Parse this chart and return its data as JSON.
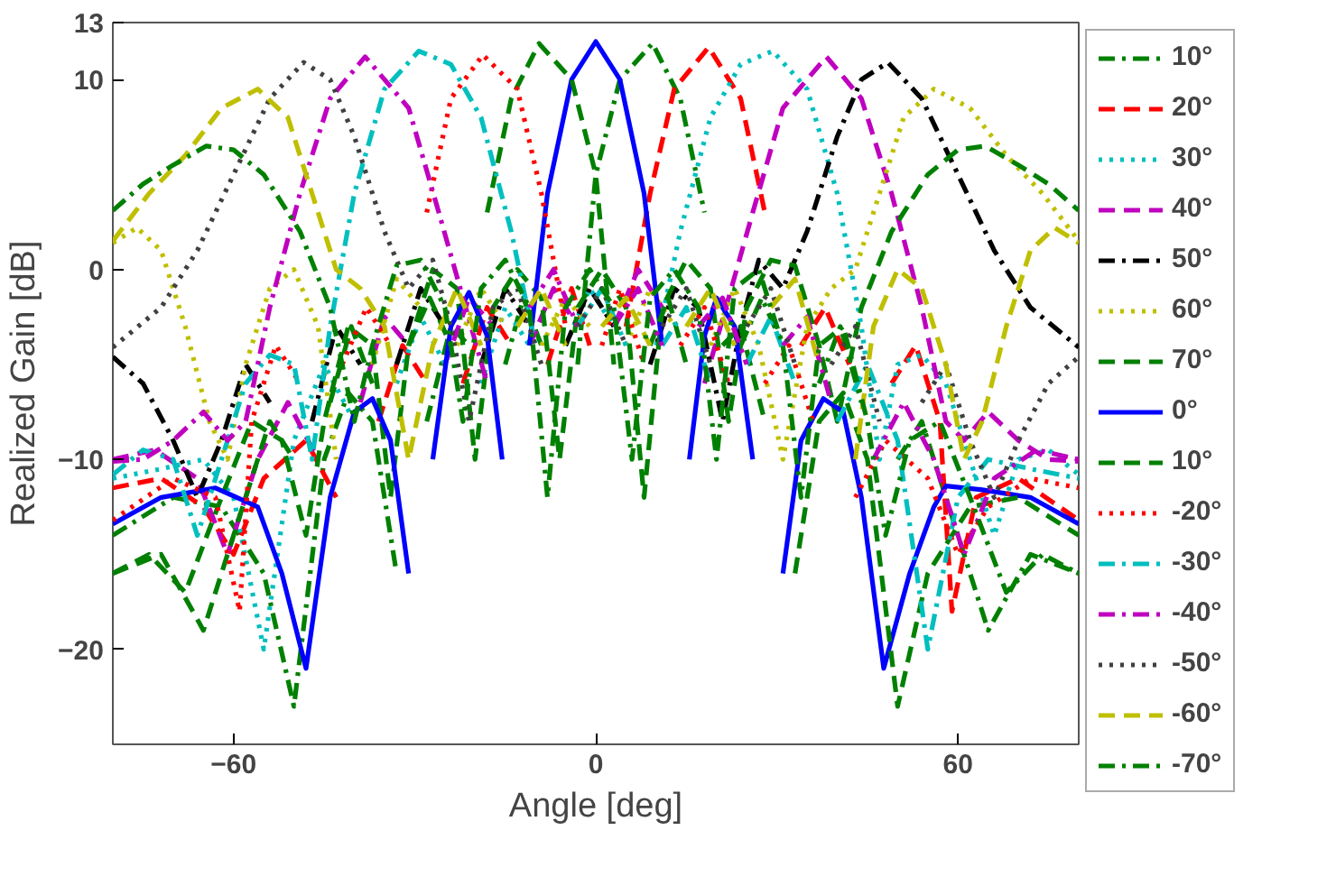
{
  "chart_data": {
    "type": "line",
    "xlabel": "Angle [deg]",
    "ylabel": "Realized Gain [dB]",
    "xlim": [
      -80,
      80
    ],
    "ylim": [
      -25,
      13
    ],
    "xticks": [
      -60,
      0,
      60
    ],
    "yticks": [
      -20,
      -10,
      0,
      10,
      13
    ],
    "grid": false,
    "legend": "right",
    "marker": "none",
    "series": [
      {
        "name": "10°",
        "color": "#008000",
        "line_style": "dashdot",
        "x": [
          -80,
          -70,
          -62,
          -55,
          -50,
          -45,
          -41,
          -37,
          -33,
          -31,
          -28,
          -24,
          -21,
          -18,
          -15,
          -12,
          -9,
          -5.5,
          -3,
          0,
          4,
          9.4,
          14,
          18,
          21.5,
          24,
          27.5,
          31,
          34,
          37,
          40.5,
          44,
          47,
          50,
          54,
          59,
          65,
          72,
          80
        ],
        "values": [
          -14,
          -12,
          -12.5,
          -16,
          -23,
          -10,
          -6.5,
          -8,
          -16,
          null,
          -8,
          -3,
          -4,
          null,
          -5,
          -1.5,
          -4,
          null,
          -5,
          5,
          10,
          11.9,
          9,
          3,
          null,
          -4,
          -1.5,
          -4,
          null,
          -6,
          -3,
          -7,
          null,
          -10,
          -8,
          -13,
          -19,
          -15,
          -16
        ]
      },
      {
        "name": "20°",
        "color": "#ff0000",
        "line_style": "dashed",
        "x": [
          -80,
          -72,
          -65,
          -60,
          -55,
          -48,
          -43,
          -39,
          -36,
          -32,
          -28,
          -25,
          -22,
          -18,
          -14,
          -11,
          -8,
          -4,
          -1,
          2,
          5,
          9,
          13,
          18.7,
          24,
          28,
          31.5,
          34,
          38,
          42,
          45.5,
          49,
          53,
          57,
          59,
          63,
          70,
          80
        ],
        "values": [
          -11.5,
          -11,
          -12.5,
          -15,
          -11,
          -9,
          -12,
          null,
          -8,
          -4,
          -6,
          null,
          -6,
          -2,
          -4,
          null,
          -5,
          -1,
          -4,
          null,
          -3,
          4,
          9.5,
          11.7,
          9,
          3,
          null,
          -4,
          -2,
          -5,
          null,
          -6,
          -4,
          -8,
          -18,
          -12,
          -11,
          -13.2
        ]
      },
      {
        "name": "30°",
        "color": "#00bfbf",
        "line_style": "dotted",
        "x": [
          -80,
          -72,
          -65,
          -60,
          -55,
          -50,
          -45,
          -40,
          -36,
          -33,
          -29,
          -25,
          -22,
          -19,
          -15,
          -11,
          -8,
          -5,
          -1,
          3,
          6,
          10,
          14,
          19,
          24,
          29.3,
          35,
          40,
          44,
          47,
          50,
          54,
          58,
          62,
          66,
          70,
          75,
          80
        ],
        "values": [
          -11,
          -10.5,
          -10,
          -12,
          -20,
          -9,
          -5,
          -8,
          null,
          -6,
          -2.5,
          -5,
          null,
          -6,
          -2,
          -4,
          null,
          -4,
          -1,
          -3,
          null,
          -4,
          2,
          8,
          10.8,
          11.5,
          9.5,
          4,
          -3,
          -10,
          -5,
          -4.5,
          -6,
          -10,
          -14,
          -10,
          -9.5,
          -10.8
        ]
      },
      {
        "name": "40°",
        "color": "#bf00bf",
        "line_style": "dashed",
        "x": [
          -80,
          -73,
          -66,
          -61,
          -56,
          -51,
          -46,
          -42,
          -39,
          -35,
          -31,
          -28,
          -25,
          -21,
          -17,
          -14,
          -11,
          -7,
          -3,
          0,
          3,
          7,
          11,
          14,
          18,
          22,
          26,
          31,
          38.2,
          44,
          49,
          54,
          58,
          61,
          65,
          70,
          75,
          80
        ],
        "values": [
          -10,
          -9.5,
          -11,
          -15,
          -10,
          -7,
          -10,
          null,
          -7,
          -2.5,
          -4,
          null,
          -5,
          -1.5,
          -3,
          null,
          -4,
          -1,
          -3,
          null,
          -3,
          0,
          -2,
          null,
          -6,
          -1.5,
          3,
          8.5,
          11.2,
          9,
          4,
          -2,
          -8,
          -9,
          -7.5,
          -9,
          -10,
          -10.1
        ]
      },
      {
        "name": "50°",
        "color": "#000000",
        "line_style": "dashdot",
        "x": [
          -80,
          -75,
          -70,
          -66,
          -62,
          -58,
          -54,
          -50,
          -47,
          -43,
          -39,
          -36,
          -33,
          -29,
          -25,
          -22,
          -19,
          -15,
          -11,
          -8,
          -5,
          -1,
          3,
          6,
          9,
          13,
          17,
          21,
          24,
          27,
          31,
          35,
          40,
          44,
          48.4,
          54,
          60,
          66,
          72,
          80
        ],
        "values": [
          -4.6,
          -6,
          -9,
          -12,
          -9,
          -5,
          -7,
          null,
          -8,
          -3,
          -5,
          null,
          -5,
          -1,
          -3,
          null,
          -5,
          -1,
          -3,
          null,
          -4,
          -1,
          -3,
          null,
          -5,
          -1,
          -2,
          -8,
          -3,
          0.5,
          -1,
          2,
          7,
          10,
          10.9,
          9,
          5,
          1,
          -2,
          -4.1
        ]
      },
      {
        "name": "60°",
        "color": "#bfbf00",
        "line_style": "dotted",
        "x": [
          -80,
          -76,
          -72,
          -68,
          -64,
          -61,
          -58,
          -54,
          -50,
          -46,
          -43,
          -40,
          -37,
          -33,
          -29,
          -26,
          -23,
          -19,
          -15,
          -12,
          -9,
          -5,
          -1,
          2,
          5,
          9,
          13,
          16,
          19,
          23,
          27,
          31,
          35,
          39,
          43,
          47,
          51,
          56,
          62,
          68,
          74,
          80
        ],
        "values": [
          1.4,
          2.2,
          1,
          -3,
          -8,
          -10,
          -5,
          -1,
          0,
          -3,
          -10,
          null,
          -5,
          -0.5,
          -2,
          null,
          -4,
          -1,
          -3,
          null,
          -4,
          -1.5,
          -3,
          null,
          -4,
          -1,
          -3,
          null,
          -4,
          -1,
          -4,
          -10,
          -3,
          -1,
          0,
          4,
          8,
          9.5,
          8.5,
          6,
          4,
          1.5
        ]
      },
      {
        "name": "70°",
        "color": "#008000",
        "line_style": "dashed",
        "x": [
          -80,
          -74,
          -68,
          -62,
          -57,
          -52,
          -48,
          -45,
          -41,
          -37,
          -34,
          -31,
          -27,
          -23,
          -20,
          -17,
          -13,
          -9,
          -6,
          -3,
          1,
          5,
          8,
          11,
          15,
          19,
          22,
          25,
          29,
          33,
          37,
          40,
          44,
          49,
          55,
          60,
          64.5,
          70,
          75,
          80
        ],
        "values": [
          -16,
          -15,
          -17,
          -12,
          -8,
          -9,
          -14,
          -8,
          -3,
          -4,
          -12,
          -4,
          0,
          -1,
          -10,
          -2,
          0,
          -1.5,
          -10,
          -2,
          0,
          -2,
          -12,
          -2,
          0.5,
          -1,
          -8,
          -2,
          0.5,
          0.2,
          -4,
          -8,
          -2,
          2,
          5,
          6.3,
          6.5,
          5.5,
          4.5,
          3.1
        ]
      },
      {
        "name": "0°",
        "color": "#0000ff",
        "line_style": "solid",
        "x": [
          -80,
          -72,
          -63,
          -56,
          -52,
          -48,
          -44,
          -40,
          -37,
          -34,
          -31,
          -29.5,
          -27,
          -24,
          -21,
          -18,
          -15.5,
          -13.5,
          -11,
          -8,
          -4,
          0,
          4,
          8,
          11,
          13.5,
          15.5,
          18,
          20,
          23,
          26,
          28.7,
          31,
          34,
          37.7,
          41,
          44,
          47.7,
          52,
          56,
          58,
          64,
          72,
          80
        ],
        "values": [
          -13.4,
          -12,
          -11.5,
          -12.5,
          -16,
          -21,
          -12,
          -7.5,
          -6.8,
          -9,
          -16,
          null,
          -10,
          -3,
          -1.2,
          -3.5,
          -10,
          null,
          -4,
          4,
          10,
          12,
          10,
          4,
          -4,
          null,
          -10,
          -3.5,
          -1.5,
          -3,
          -10,
          null,
          -16,
          -9,
          -6.8,
          -7.5,
          -12,
          -21,
          -16,
          -12.5,
          -11.4,
          -11.6,
          -12,
          -13.4
        ]
      },
      {
        "name": "10°",
        "color": "#008000",
        "line_style": "dashed",
        "x": [
          -80,
          -72,
          -65,
          -59,
          -54,
          -50,
          -47,
          -44,
          -40.5,
          -37,
          -34,
          -31,
          -27.5,
          -24,
          -21.5,
          -18,
          -14,
          -9.4,
          -4,
          0,
          3,
          5.5,
          9,
          12,
          15,
          18,
          21,
          24,
          28,
          31,
          33,
          37,
          41,
          45,
          50,
          55,
          62,
          70,
          80
        ],
        "values": [
          -16,
          -15,
          -19,
          -13,
          -8,
          -10,
          null,
          -7,
          -3,
          -6,
          null,
          -4,
          -1.5,
          -4,
          null,
          3,
          9,
          11.9,
          10,
          5,
          -5,
          null,
          -4,
          -1.5,
          -5,
          null,
          -4,
          -3,
          -8,
          null,
          -16,
          -8,
          -6.5,
          -10,
          -23,
          -16,
          -12.5,
          -12,
          -14
        ]
      },
      {
        "name": "-20°",
        "color": "#ff0000",
        "line_style": "dotted",
        "x": [
          -80,
          -70,
          -63,
          -59,
          -57,
          -53,
          -49,
          -45.5,
          -42,
          -38,
          -34,
          -31.5,
          -28,
          -24,
          -18.7,
          -13,
          -9,
          -5,
          -2,
          1,
          4,
          8,
          11,
          14,
          18,
          22,
          25,
          28,
          32,
          36,
          39,
          43,
          48,
          55,
          60,
          65,
          72,
          80
        ],
        "values": [
          -13.2,
          -11,
          -12,
          -18,
          -8,
          -4,
          -6,
          null,
          -5,
          -2,
          -4,
          null,
          3,
          9,
          11.3,
          9.5,
          4,
          -3,
          null,
          -4,
          -1,
          -5,
          null,
          -4,
          -2,
          -6,
          null,
          -6,
          -4,
          -8,
          null,
          -12,
          -9,
          -11,
          -15,
          -12.5,
          -11,
          -11.5
        ]
      },
      {
        "name": "-30°",
        "color": "#00bfbf",
        "line_style": "dashdot",
        "x": [
          -80,
          -75,
          -70,
          -66,
          -62,
          -58,
          -54,
          -50,
          -47,
          -44,
          -40,
          -35,
          -29.3,
          -24,
          -19,
          -14,
          -10,
          -6,
          -3,
          1,
          5,
          8,
          11,
          15,
          19,
          22,
          25,
          29,
          33,
          36,
          40,
          45,
          50,
          55,
          60,
          65,
          72,
          80
        ],
        "values": [
          -10.8,
          -9.5,
          -10,
          -14,
          -10,
          -6,
          -4.5,
          -5,
          -10,
          -3,
          4,
          9.5,
          11.5,
          10.8,
          8,
          2,
          -4,
          null,
          -3,
          -1,
          -4,
          null,
          -4,
          -2,
          -6,
          null,
          -5,
          -2.5,
          -6,
          null,
          -8,
          -5,
          -9,
          -20,
          -12,
          -10,
          -10.5,
          -11
        ]
      },
      {
        "name": "-40°",
        "color": "#bf00bf",
        "line_style": "dashdot",
        "x": [
          -80,
          -75,
          -70,
          -65,
          -61,
          -58,
          -54,
          -49,
          -44,
          -38.2,
          -31,
          -26,
          -22,
          -18,
          -14,
          -11,
          -7,
          -3,
          0,
          3,
          7,
          11,
          14,
          17,
          21,
          25,
          28,
          31,
          35,
          39,
          42,
          46,
          51,
          56,
          61,
          66,
          73,
          80
        ],
        "values": [
          -10.1,
          -10,
          -9,
          -7.5,
          -9,
          -8,
          -2,
          4,
          9,
          11.2,
          8.5,
          3,
          -1.5,
          -6,
          null,
          -2,
          0,
          -3,
          null,
          -3,
          -1,
          -4,
          null,
          -3,
          -1.5,
          -5,
          null,
          -4,
          -2.5,
          -7,
          null,
          -10,
          -7,
          -10,
          -15,
          -11,
          -9.5,
          -10
        ]
      },
      {
        "name": "-50°",
        "color": "#404040",
        "line_style": "dotted",
        "x": [
          -80,
          -72,
          -66,
          -60,
          -54,
          -48.4,
          -44,
          -40,
          -35,
          -31,
          -27,
          -24,
          -21,
          -17,
          -13,
          -9,
          -6,
          -3,
          1,
          5,
          8,
          11,
          15,
          19,
          22,
          25,
          29,
          33,
          36,
          39,
          43,
          47,
          50,
          54,
          58,
          62,
          66,
          70,
          75,
          80
        ],
        "values": [
          -4.1,
          -2,
          1,
          5,
          9,
          10.9,
          10,
          7,
          2,
          -1,
          0.5,
          -3,
          -8,
          -2,
          -1,
          -5,
          null,
          -3,
          -1,
          -4,
          null,
          -3,
          -1,
          -5,
          null,
          -3,
          -1,
          -5,
          null,
          -5,
          -3,
          -8,
          null,
          -7,
          -5,
          -9,
          -12,
          -9,
          -6,
          -4.6
        ]
      },
      {
        "name": "-60°",
        "color": "#bfbf00",
        "line_style": "dashed",
        "x": [
          -80,
          -74,
          -68,
          -62,
          -56,
          -51,
          -47,
          -43,
          -39,
          -35,
          -31,
          -27,
          -23,
          -19,
          -16,
          -13,
          -9,
          -5,
          -2,
          1,
          5,
          9,
          12,
          15,
          19,
          23,
          26,
          29,
          33,
          37,
          40,
          43,
          46,
          50,
          54,
          58,
          61,
          64,
          68,
          72,
          76,
          80
        ],
        "values": [
          1.5,
          4,
          6,
          8.5,
          9.5,
          8,
          4,
          0,
          -1,
          -3,
          -10,
          -4,
          -1,
          -4,
          null,
          -3,
          -1,
          -4,
          null,
          -3,
          -1.5,
          -4,
          null,
          -3,
          -1,
          -4,
          null,
          -2,
          -0.5,
          -5,
          null,
          -10,
          -3,
          0,
          -1,
          -5,
          -10,
          -8,
          -3,
          1,
          2.2,
          1.4
        ]
      },
      {
        "name": "-70°",
        "color": "#008000",
        "line_style": "dashdot",
        "x": [
          -80,
          -75,
          -70,
          -64.5,
          -60,
          -55,
          -49,
          -44,
          -40,
          -37,
          -33,
          -29,
          -25,
          -22,
          -19,
          -15,
          -11,
          -8,
          -5,
          -1,
          3,
          6,
          9,
          13,
          17,
          20,
          23,
          27,
          31,
          34,
          37,
          41,
          45,
          48,
          52,
          57,
          62,
          68,
          74,
          80
        ],
        "values": [
          3.1,
          4.5,
          5.5,
          6.5,
          6.3,
          5,
          2,
          -2,
          -8,
          -4,
          0.2,
          0.5,
          -2,
          -8,
          -1,
          0.5,
          -2,
          -12,
          -2,
          0,
          -2,
          -10,
          -1.5,
          0,
          -2,
          -10,
          -1,
          0,
          -4,
          -12,
          -4,
          -3,
          -8,
          -14,
          -9,
          -8,
          -12,
          -17,
          -15,
          -16
        ]
      }
    ]
  }
}
